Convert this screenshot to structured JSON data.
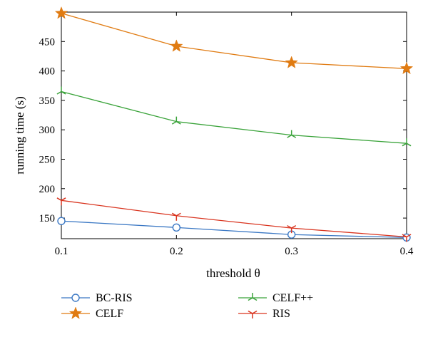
{
  "chart_data": {
    "type": "line",
    "xlabel": "threshold θ",
    "ylabel": "running time (s)",
    "x": [
      0.1,
      0.2,
      0.3,
      0.4
    ],
    "xlim": [
      0.1,
      0.4
    ],
    "ylim": [
      115,
      500
    ],
    "xticks": [
      "0.1",
      "0.2",
      "0.3",
      "0.4"
    ],
    "yticks": [
      "150",
      "200",
      "250",
      "300",
      "350",
      "400",
      "450"
    ],
    "grid": false,
    "legend_position": "bottom",
    "series": [
      {
        "name": "BC-RIS",
        "color": "#3b78c4",
        "marker": "circle",
        "values": [
          145,
          134,
          122,
          117
        ]
      },
      {
        "name": "CELF",
        "color": "#e07b12",
        "marker": "star",
        "values": [
          498,
          442,
          414,
          404
        ]
      },
      {
        "name": "CELF++",
        "color": "#3aa33a",
        "marker": "tri-cross",
        "values": [
          365,
          314,
          291,
          277
        ]
      },
      {
        "name": "RIS",
        "color": "#d9341f",
        "marker": "tri-y",
        "values": [
          180,
          154,
          133,
          118
        ]
      }
    ]
  }
}
